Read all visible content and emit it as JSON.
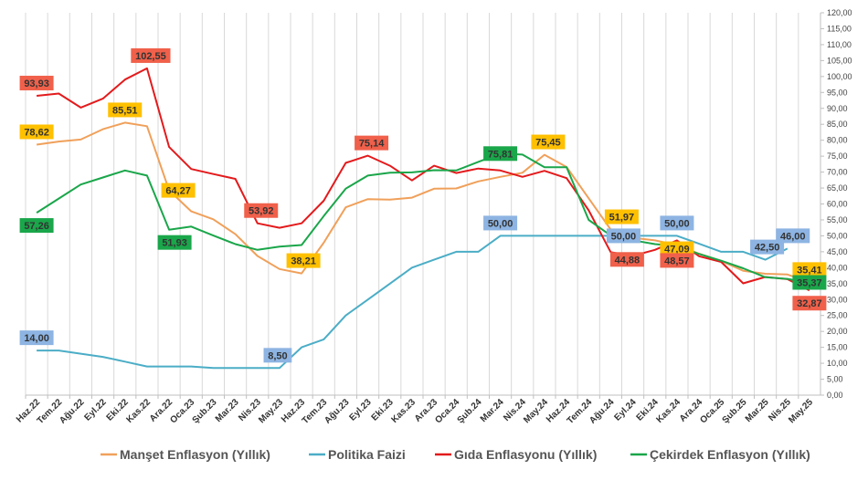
{
  "chart_data": {
    "type": "line",
    "title": "",
    "xlabel": "",
    "ylabel": "",
    "ylim": [
      0,
      120
    ],
    "ytick_step": 5,
    "grid": "vertical",
    "legend_position": "bottom",
    "categories": [
      "Haz.22",
      "Tem.22",
      "Ağu.22",
      "Eyl.22",
      "Eki.22",
      "Kas.22",
      "Ara.22",
      "Oca.23",
      "Şub.23",
      "Mar.23",
      "Nis.23",
      "May.23",
      "Haz.23",
      "Tem.23",
      "Ağu.23",
      "Eyl.23",
      "Eki.23",
      "Kas.23",
      "Ara.23",
      "Oca.24",
      "Şub.24",
      "Mar.24",
      "Nis.24",
      "May.24",
      "Haz.24",
      "Tem.24",
      "Ağu.24",
      "Eyl.24",
      "Eki.24",
      "Kas.24",
      "Ara.24",
      "Oca.25",
      "Şub.25",
      "Mar.25",
      "Nis.25",
      "May.25"
    ],
    "series": [
      {
        "name": "Manşet Enflasyon (Yıllık)",
        "color": "#f0a05a",
        "values": [
          78.62,
          79.6,
          80.21,
          83.45,
          85.51,
          84.39,
          64.27,
          57.68,
          55.18,
          50.51,
          43.68,
          39.59,
          38.21,
          47.83,
          58.94,
          61.53,
          61.36,
          61.98,
          64.77,
          64.86,
          67.07,
          68.5,
          69.8,
          75.45,
          71.6,
          61.78,
          51.97,
          49.38,
          48.58,
          47.09,
          44.38,
          42.12,
          39.05,
          38.1,
          37.86,
          35.41
        ]
      },
      {
        "name": "Politika Faizi",
        "color": "#4badc6",
        "values": [
          14,
          14,
          13,
          12,
          10.5,
          9,
          9,
          9,
          8.5,
          8.5,
          8.5,
          8.5,
          15,
          17.5,
          25,
          30,
          35,
          40,
          42.5,
          45,
          45,
          50,
          50,
          50,
          50,
          50,
          50,
          50,
          50,
          50,
          47.5,
          45,
          45,
          42.5,
          46,
          null
        ]
      },
      {
        "name": "Gıda Enflasyonu (Yıllık)",
        "color": "#e31a1c",
        "values": [
          93.93,
          94.65,
          90.25,
          93.05,
          99.05,
          102.55,
          77.87,
          70.97,
          69.39,
          67.89,
          53.92,
          52.52,
          53.92,
          61,
          72.9,
          75.14,
          72,
          67.4,
          72,
          69.7,
          71.1,
          70.5,
          68.5,
          70.4,
          68.1,
          58,
          44.88,
          43.7,
          45.6,
          48.57,
          43.6,
          41.8,
          35.07,
          37.1,
          36.4,
          32.87
        ]
      },
      {
        "name": "Çekirdek Enflasyon (Yıllık)",
        "color": "#1aa64a",
        "values": [
          57.26,
          61.69,
          66.1,
          68.3,
          70.5,
          68.9,
          51.93,
          52.9,
          50.1,
          47.4,
          45.6,
          46.6,
          47.1,
          56.2,
          64.8,
          68.9,
          69.8,
          69.9,
          70.6,
          70.5,
          73.2,
          75.81,
          75.5,
          71.5,
          71.5,
          55,
          50.1,
          48.6,
          47.4,
          46.8,
          44.3,
          42.2,
          39.8,
          37,
          36.5,
          35.37
        ]
      }
    ],
    "data_labels": [
      {
        "series": 0,
        "index": 0,
        "text": "78,62",
        "bg": "#ffc000",
        "fg": "#333333",
        "dx": 0,
        "dy": -14
      },
      {
        "series": 0,
        "index": 4,
        "text": "85,51",
        "bg": "#ffc000",
        "fg": "#333333",
        "dx": 0,
        "dy": -14
      },
      {
        "series": 0,
        "index": 6,
        "text": "64,27",
        "bg": "#ffc000",
        "fg": "#333333",
        "dx": 10,
        "dy": 0
      },
      {
        "series": 0,
        "index": 12,
        "text": "38,21",
        "bg": "#ffc000",
        "fg": "#333333",
        "dx": 2,
        "dy": -14
      },
      {
        "series": 0,
        "index": 23,
        "text": "75,45",
        "bg": "#ffc000",
        "fg": "#333333",
        "dx": 4,
        "dy": -14
      },
      {
        "series": 0,
        "index": 26,
        "text": "51,97",
        "bg": "#ffc000",
        "fg": "#333333",
        "dx": 12,
        "dy": -14
      },
      {
        "series": 0,
        "index": 29,
        "text": "47,09",
        "bg": "#ffc000",
        "fg": "#333333",
        "dx": 0,
        "dy": 4
      },
      {
        "series": 0,
        "index": 35,
        "text": "35,41",
        "bg": "#ffc000",
        "fg": "#333333",
        "dx": 0,
        "dy": -14
      },
      {
        "series": 1,
        "index": 0,
        "text": "14,00",
        "bg": "#8db4e2",
        "fg": "#333333",
        "dx": 0,
        "dy": -14
      },
      {
        "series": 1,
        "index": 11,
        "text": "8,50",
        "bg": "#8db4e2",
        "fg": "#333333",
        "dx": -2,
        "dy": -14
      },
      {
        "series": 1,
        "index": 21,
        "text": "50,00",
        "bg": "#8db4e2",
        "fg": "#333333",
        "dx": 0,
        "dy": -14
      },
      {
        "series": 1,
        "index": 26,
        "text": "50,00",
        "bg": "#8db4e2",
        "fg": "#333333",
        "dx": 14,
        "dy": 0
      },
      {
        "series": 1,
        "index": 29,
        "text": "50,00",
        "bg": "#8db4e2",
        "fg": "#333333",
        "dx": 0,
        "dy": -14
      },
      {
        "series": 1,
        "index": 33,
        "text": "42,50",
        "bg": "#8db4e2",
        "fg": "#333333",
        "dx": 2,
        "dy": -14
      },
      {
        "series": 1,
        "index": 34,
        "text": "46,00",
        "bg": "#8db4e2",
        "fg": "#333333",
        "dx": 6,
        "dy": -14
      },
      {
        "series": 2,
        "index": 0,
        "text": "93,93",
        "bg": "#f0604a",
        "fg": "#333333",
        "dx": 0,
        "dy": -14
      },
      {
        "series": 2,
        "index": 5,
        "text": "102,55",
        "bg": "#f0604a",
        "fg": "#333333",
        "dx": 4,
        "dy": -14
      },
      {
        "series": 2,
        "index": 10,
        "text": "53,92",
        "bg": "#f0604a",
        "fg": "#333333",
        "dx": 4,
        "dy": -14
      },
      {
        "series": 2,
        "index": 15,
        "text": "75,14",
        "bg": "#f0604a",
        "fg": "#333333",
        "dx": 4,
        "dy": -14
      },
      {
        "series": 2,
        "index": 26,
        "text": "44,88",
        "bg": "#f0604a",
        "fg": "#333333",
        "dx": 18,
        "dy": 8
      },
      {
        "series": 2,
        "index": 29,
        "text": "48,57",
        "bg": "#f0604a",
        "fg": "#333333",
        "dx": 0,
        "dy": 22
      },
      {
        "series": 2,
        "index": 35,
        "text": "32,87",
        "bg": "#f0604a",
        "fg": "#333333",
        "dx": 0,
        "dy": 14
      },
      {
        "series": 3,
        "index": 0,
        "text": "57,26",
        "bg": "#1aa64a",
        "fg": "#333333",
        "dx": 0,
        "dy": 14
      },
      {
        "series": 3,
        "index": 6,
        "text": "51,93",
        "bg": "#1aa64a",
        "fg": "#333333",
        "dx": 6,
        "dy": 14
      },
      {
        "series": 3,
        "index": 21,
        "text": "75,81",
        "bg": "#1aa64a",
        "fg": "#333333",
        "dx": 0,
        "dy": 0
      },
      {
        "series": 3,
        "index": 35,
        "text": "35,37",
        "bg": "#1aa64a",
        "fg": "#333333",
        "dx": 0,
        "dy": 0
      }
    ]
  }
}
